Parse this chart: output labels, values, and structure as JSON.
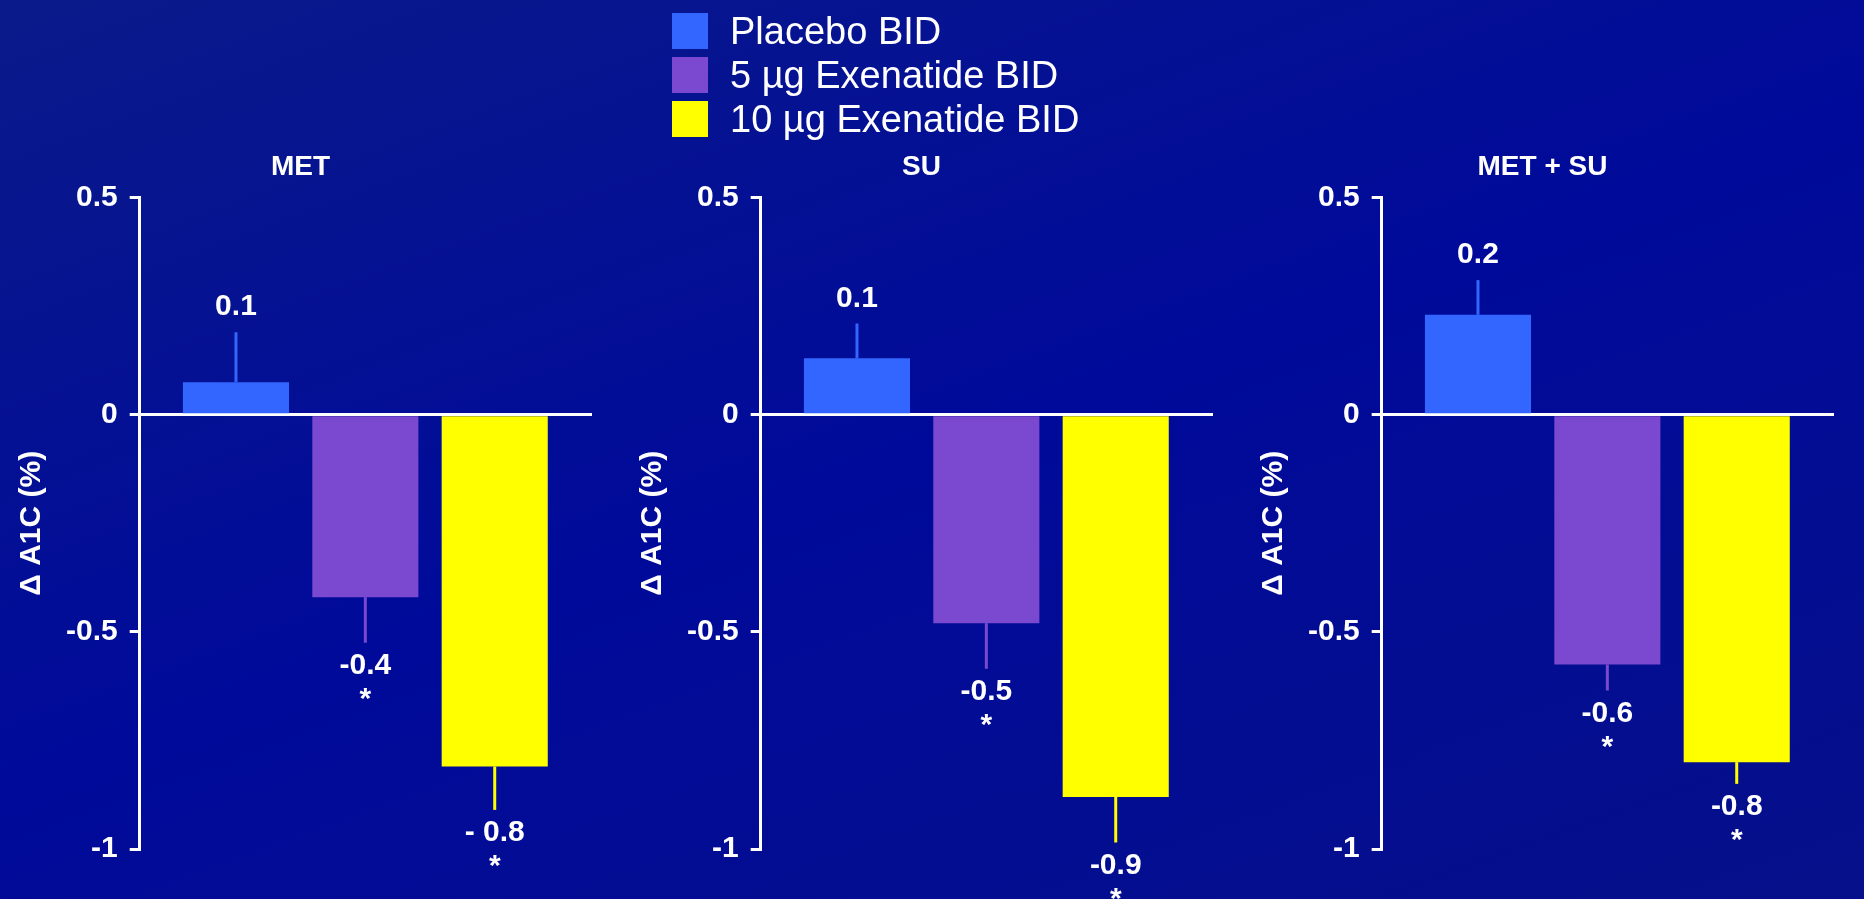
{
  "chart_data": [
    {
      "type": "bar",
      "title": "MET",
      "ylabel": "Δ A1C (%)",
      "categories": [
        null
      ],
      "ylim": [
        -1,
        0.5
      ],
      "yticks": [
        0.5,
        0,
        -0.5,
        -1
      ],
      "legend": "top",
      "tick_labels": "y",
      "series": [
        {
          "name": "Placebo BID",
          "color": "#3366ff",
          "values": [
            0.075
          ],
          "errors": [
            [
              0.075,
              0.19
            ]
          ],
          "value_labels": [
            "0.1"
          ]
        },
        {
          "name": "5 µg Exenatide BID",
          "color": "#7b48d0",
          "values": [
            -0.42
          ],
          "errors": [
            [
              -0.525,
              -0.42
            ]
          ],
          "value_labels": [
            "-0.4\n*"
          ]
        },
        {
          "name": "10 µg Exenatide BID",
          "color": "#ffff00",
          "values": [
            -0.81
          ],
          "errors": [
            [
              -0.91,
              -0.81
            ]
          ],
          "value_labels": [
            "- 0.8\n*"
          ]
        }
      ]
    },
    {
      "type": "bar",
      "title": "SU",
      "ylabel": "Δ A1C (%)",
      "categories": [
        null
      ],
      "ylim": [
        -1,
        0.5
      ],
      "yticks": [
        0.5,
        0,
        -0.5,
        -1
      ],
      "tick_labels": "y",
      "series": [
        {
          "color": "#3366ff",
          "values": [
            0.13
          ],
          "errors": [
            [
              0.13,
              0.21
            ]
          ],
          "value_labels": [
            "0.1"
          ]
        },
        {
          "color": "#7b48d0",
          "values": [
            -0.48
          ],
          "errors": [
            [
              -0.585,
              -0.48
            ]
          ],
          "value_labels": [
            "-0.5\n*"
          ]
        },
        {
          "color": "#ffff00",
          "values": [
            -0.88
          ],
          "errors": [
            [
              -0.985,
              -0.88
            ]
          ],
          "value_labels": [
            "-0.9\n*"
          ]
        }
      ]
    },
    {
      "type": "bar",
      "title": "MET + SU",
      "ylabel": "Δ A1C (%)",
      "categories": [
        null
      ],
      "ylim": [
        -1,
        0.5
      ],
      "yticks": [
        0.5,
        0,
        -0.5,
        -1
      ],
      "tick_labels": "y",
      "series": [
        {
          "color": "#3366ff",
          "values": [
            0.23
          ],
          "errors": [
            [
              0.23,
              0.31
            ]
          ],
          "value_labels": [
            "0.2"
          ]
        },
        {
          "color": "#7b48d0",
          "values": [
            -0.575
          ],
          "errors": [
            [
              -0.635,
              -0.575
            ]
          ],
          "value_labels": [
            "-0.6\n*"
          ]
        },
        {
          "color": "#ffff00",
          "values": [
            -0.8
          ],
          "errors": [
            [
              -0.85,
              -0.8
            ]
          ],
          "value_labels": [
            "-0.8\n*"
          ]
        }
      ]
    }
  ]
}
